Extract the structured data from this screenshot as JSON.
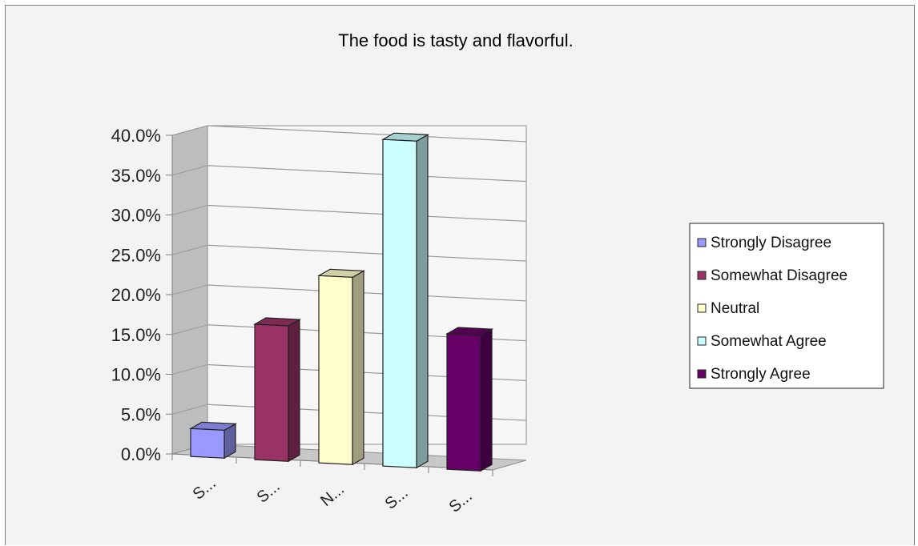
{
  "chart_data": {
    "type": "bar",
    "title": "The food is tasty and flavorful.",
    "categories": [
      "S...",
      "S...",
      "N...",
      "S...",
      "S..."
    ],
    "series": [
      {
        "name": "Strongly Disagree",
        "value": 3.5,
        "color": "#9999ff"
      },
      {
        "name": "Somewhat Disagree",
        "value": 17.0,
        "color": "#993366"
      },
      {
        "name": "Neutral",
        "value": 23.5,
        "color": "#ffffcc"
      },
      {
        "name": "Somewhat Agree",
        "value": 41.0,
        "color": "#ccffff"
      },
      {
        "name": "Strongly Agree",
        "value": 17.0,
        "color": "#660066"
      }
    ],
    "yticks": [
      "0.0%",
      "5.0%",
      "10.0%",
      "15.0%",
      "20.0%",
      "25.0%",
      "30.0%",
      "35.0%",
      "40.0%"
    ],
    "ylim": [
      0,
      40
    ],
    "grid": true,
    "legend_position": "right",
    "style": "3d-column"
  }
}
